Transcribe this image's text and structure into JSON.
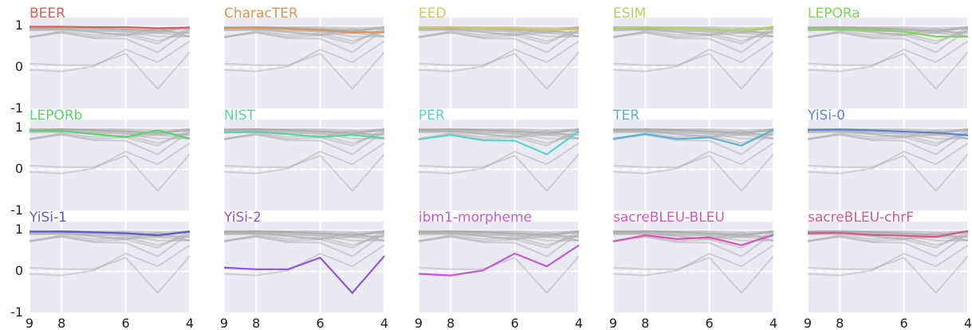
{
  "chart_data": {
    "type": "line",
    "layout": "small-multiples",
    "x": [
      9,
      8,
      7,
      6,
      5,
      4
    ],
    "xlim": [
      9,
      4
    ],
    "xticks": [
      9,
      8,
      6,
      4
    ],
    "ylim": [
      -1,
      1.2
    ],
    "yticks": [
      -1,
      0,
      1
    ],
    "grid": true,
    "reference_line": 0,
    "background": "#eaeaf2",
    "context_color": "#a8a8a8",
    "series": [
      {
        "name": "BEER",
        "color": "#db5f57",
        "values": [
          0.98,
          0.98,
          0.97,
          0.97,
          0.94,
          0.96
        ]
      },
      {
        "name": "CharacTER",
        "color": "#db9157",
        "values": [
          0.95,
          0.96,
          0.93,
          0.9,
          0.84,
          0.85
        ]
      },
      {
        "name": "EED",
        "color": "#d5c757",
        "values": [
          0.96,
          0.97,
          0.95,
          0.94,
          0.9,
          0.92
        ]
      },
      {
        "name": "ESIM",
        "color": "#b3d557",
        "values": [
          0.95,
          0.97,
          0.95,
          0.91,
          0.88,
          0.98
        ]
      },
      {
        "name": "LEPORa",
        "color": "#7cd557",
        "values": [
          0.9,
          0.91,
          0.9,
          0.86,
          0.74,
          0.74
        ]
      },
      {
        "name": "LEPORb",
        "color": "#57d56c",
        "values": [
          0.93,
          0.93,
          0.85,
          0.78,
          0.94,
          0.74
        ]
      },
      {
        "name": "NIST",
        "color": "#57d59b",
        "values": [
          0.89,
          0.9,
          0.85,
          0.78,
          0.83,
          0.75
        ]
      },
      {
        "name": "PER",
        "color": "#57d5c9",
        "values": [
          0.72,
          0.83,
          0.7,
          0.69,
          0.36,
          0.92
        ]
      },
      {
        "name": "TER",
        "color": "#57b3d5",
        "values": [
          0.74,
          0.85,
          0.73,
          0.77,
          0.57,
          0.96
        ]
      },
      {
        "name": "YiSi-0",
        "color": "#5785d5",
        "values": [
          0.95,
          0.96,
          0.94,
          0.91,
          0.88,
          0.82
        ]
      },
      {
        "name": "YiSi-1",
        "color": "#5e57d5",
        "values": [
          0.96,
          0.96,
          0.94,
          0.92,
          0.87,
          0.96
        ]
      },
      {
        "name": "YiSi-2",
        "color": "#8c57d5",
        "values": [
          0.09,
          0.05,
          0.05,
          0.33,
          -0.52,
          0.37
        ]
      },
      {
        "name": "ibm1-morpheme",
        "color": "#c457d5",
        "values": [
          -0.06,
          -0.1,
          0.02,
          0.43,
          0.12,
          0.63
        ]
      },
      {
        "name": "sacreBLEU-BLEU",
        "color": "#d557b3",
        "values": [
          0.72,
          0.87,
          0.78,
          0.82,
          0.63,
          0.88
        ]
      },
      {
        "name": "sacreBLEU-chrF",
        "color": "#d55785",
        "values": [
          0.92,
          0.93,
          0.88,
          0.86,
          0.83,
          0.97
        ]
      }
    ]
  }
}
